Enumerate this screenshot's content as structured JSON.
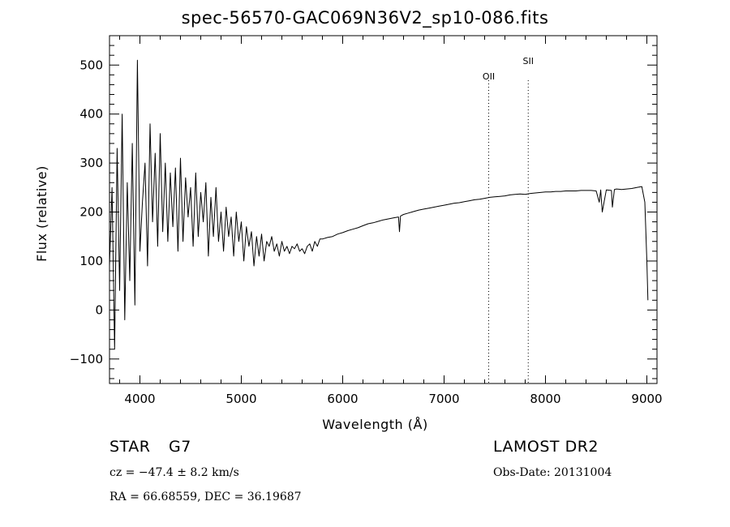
{
  "chart_data": {
    "type": "line",
    "title": "spec-56570-GAC069N36V2_sp10-086.fits",
    "xlabel": "Wavelength (Å)",
    "ylabel": "Flux (relative)",
    "xlim": [
      3700,
      9100
    ],
    "ylim": [
      -150,
      560
    ],
    "xticks": [
      4000,
      5000,
      6000,
      7000,
      8000,
      9000
    ],
    "yticks": [
      -100,
      0,
      100,
      200,
      300,
      400,
      500
    ],
    "tick_labels_x": [
      "4000",
      "5000",
      "6000",
      "7000",
      "8000",
      "9000"
    ],
    "tick_labels_y": [
      "−100",
      "0",
      "100",
      "200",
      "300",
      "400",
      "500"
    ],
    "vertical_markers": [
      {
        "label": "OII",
        "x": 7440
      },
      {
        "label": "SII",
        "x": 7830
      }
    ],
    "series": [
      {
        "name": "flux",
        "x": [
          3700,
          3725,
          3750,
          3775,
          3800,
          3825,
          3850,
          3875,
          3900,
          3925,
          3950,
          3975,
          4000,
          4025,
          4050,
          4075,
          4100,
          4125,
          4150,
          4175,
          4200,
          4225,
          4250,
          4275,
          4300,
          4325,
          4350,
          4375,
          4400,
          4425,
          4450,
          4475,
          4500,
          4525,
          4550,
          4575,
          4600,
          4625,
          4650,
          4675,
          4700,
          4725,
          4750,
          4775,
          4800,
          4825,
          4850,
          4875,
          4900,
          4925,
          4950,
          4975,
          5000,
          5025,
          5050,
          5075,
          5100,
          5125,
          5150,
          5175,
          5200,
          5225,
          5250,
          5275,
          5300,
          5325,
          5350,
          5375,
          5400,
          5425,
          5450,
          5475,
          5500,
          5525,
          5550,
          5575,
          5600,
          5625,
          5650,
          5675,
          5700,
          5725,
          5750,
          5775,
          5800,
          5850,
          5900,
          5950,
          6000,
          6050,
          6100,
          6150,
          6200,
          6250,
          6300,
          6350,
          6400,
          6450,
          6500,
          6550,
          6560,
          6570,
          6600,
          6650,
          6700,
          6750,
          6800,
          6850,
          6900,
          6950,
          7000,
          7050,
          7100,
          7150,
          7200,
          7250,
          7300,
          7350,
          7400,
          7450,
          7500,
          7550,
          7600,
          7650,
          7700,
          7750,
          7800,
          7850,
          7900,
          7950,
          8000,
          8050,
          8100,
          8150,
          8200,
          8250,
          8300,
          8350,
          8400,
          8450,
          8500,
          8530,
          8545,
          8560,
          8600,
          8650,
          8660,
          8680,
          8700,
          8750,
          8800,
          8850,
          8900,
          8950,
          8980,
          9000,
          9010
        ],
        "values": [
          90,
          250,
          -80,
          330,
          40,
          400,
          -20,
          260,
          60,
          340,
          10,
          510,
          120,
          220,
          300,
          90,
          380,
          180,
          320,
          130,
          360,
          160,
          300,
          140,
          280,
          170,
          290,
          120,
          310,
          140,
          270,
          190,
          250,
          130,
          280,
          150,
          240,
          180,
          260,
          110,
          230,
          150,
          250,
          140,
          200,
          120,
          210,
          150,
          190,
          110,
          200,
          140,
          180,
          100,
          170,
          130,
          160,
          90,
          150,
          110,
          155,
          100,
          140,
          130,
          150,
          120,
          135,
          110,
          140,
          120,
          130,
          115,
          130,
          125,
          135,
          120,
          125,
          115,
          130,
          135,
          120,
          140,
          130,
          145,
          145,
          148,
          150,
          155,
          158,
          162,
          165,
          168,
          172,
          176,
          178,
          181,
          184,
          186,
          188,
          190,
          160,
          192,
          195,
          198,
          201,
          204,
          206,
          208,
          210,
          212,
          214,
          216,
          218,
          219,
          221,
          223,
          225,
          226,
          228,
          230,
          231,
          232,
          233,
          235,
          236,
          237,
          236,
          238,
          239,
          240,
          241,
          241,
          242,
          242,
          243,
          243,
          243,
          244,
          244,
          244,
          243,
          220,
          245,
          200,
          245,
          244,
          210,
          246,
          247,
          246,
          247,
          248,
          250,
          252,
          220,
          100,
          20
        ]
      }
    ]
  },
  "footer": {
    "object_class": "STAR",
    "subclass": "G7",
    "cz": "cz = −47.4 ± 8.2 km/s",
    "coords": "RA =  66.68559, DEC =  36.19687",
    "survey": "LAMOST DR2",
    "obs_date": "Obs-Date: 20131004"
  }
}
